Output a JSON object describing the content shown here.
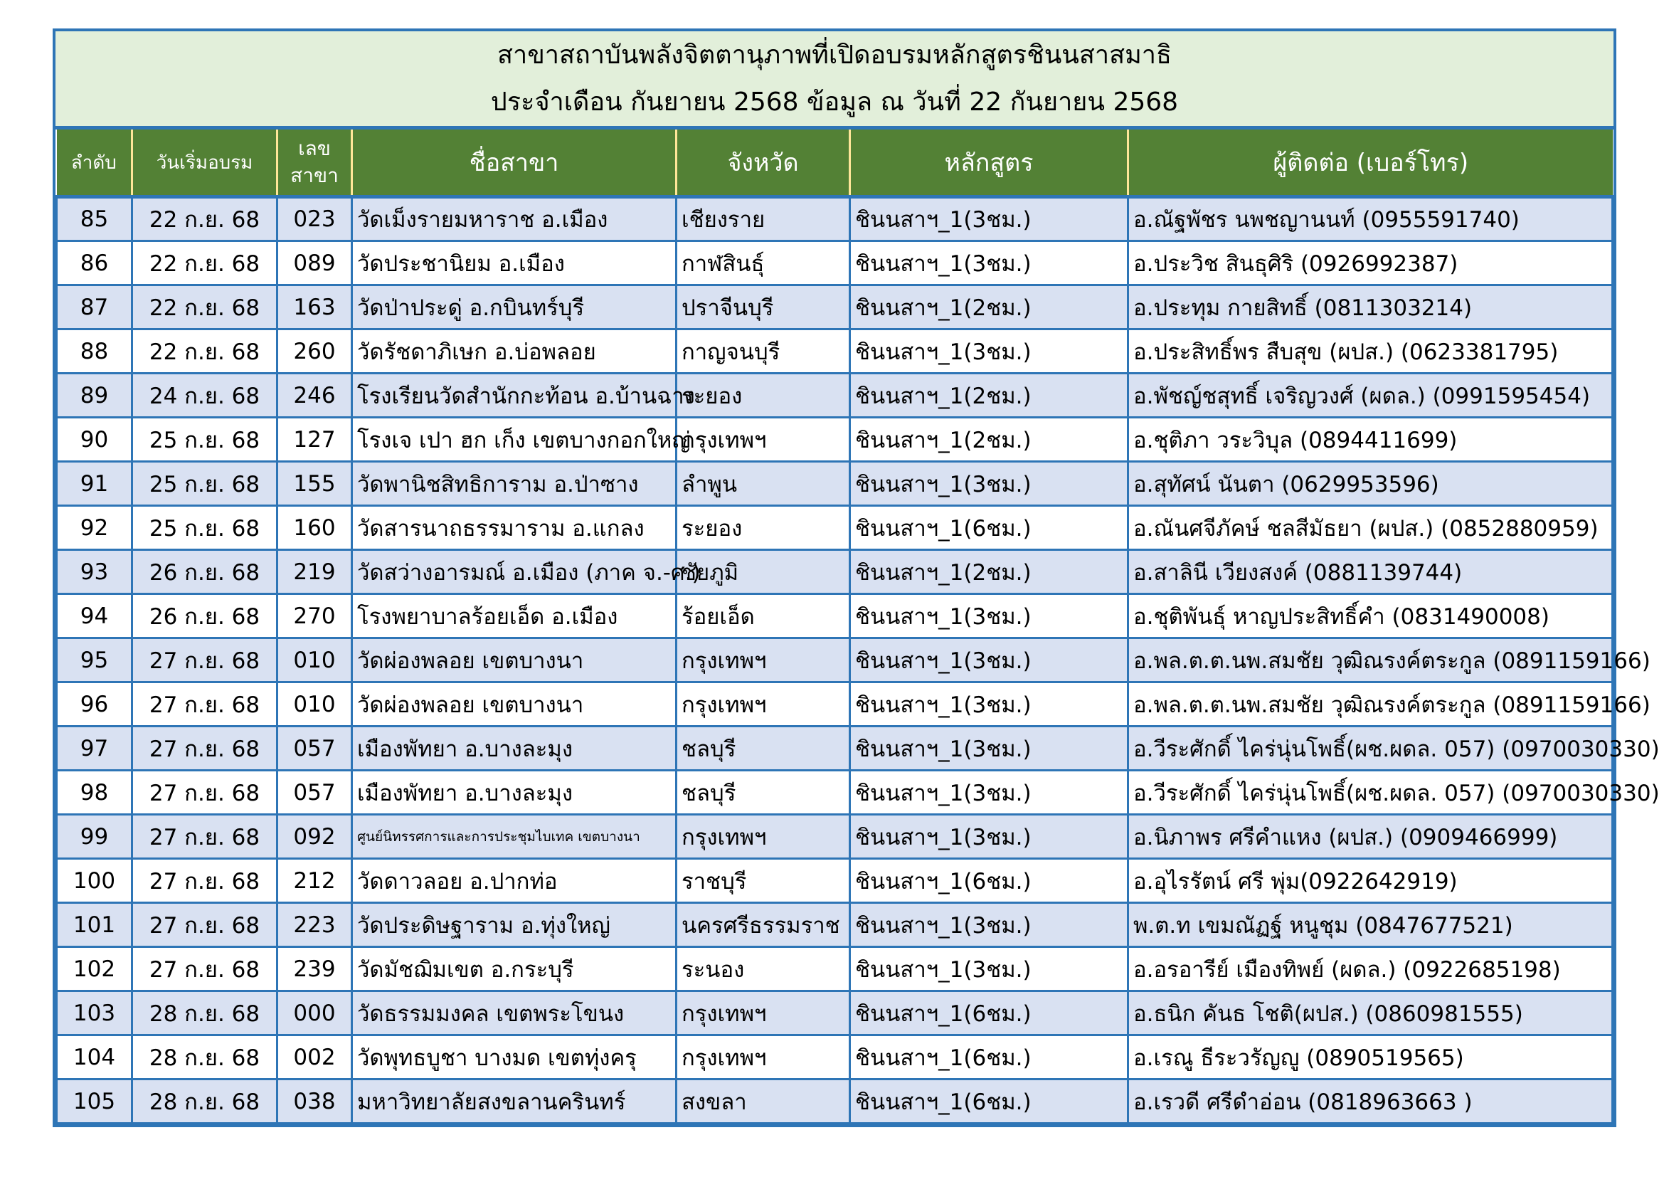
{
  "title": {
    "line1": "สาขาสถาบันพลังจิตตานุภาพที่เปิดอบรมหลักสูตรชินนสาสมาธิ",
    "line2": "ประจำเดือน กันยายน 2568 ข้อมูล ณ วันที่ 22 กันยายน 2568"
  },
  "columns": [
    "ลำดับ",
    "วันเริ่มอบรม",
    "เลข สาขา",
    "ชื่อสาขา",
    "จังหวัด",
    "หลักสูตร",
    "ผู้ติดต่อ (เบอร์โทร)"
  ],
  "colors": {
    "title_bg": "#E2EFDA",
    "header_bg": "#538135",
    "border": "#2E75B6",
    "row_alt": "#D9E1F2",
    "header_divider": "#FFE699"
  },
  "rows": [
    [
      "85",
      "22 ก.ย. 68",
      "023",
      "วัดเม็งรายมหาราช อ.เมือง",
      "เชียงราย",
      "ชินนสาฯ_1(3ชม.)",
      "อ.ณัฐพัชร  นพชญานนท์ (0955591740)"
    ],
    [
      "86",
      "22 ก.ย. 68",
      "089",
      "วัดประชานิยม อ.เมือง",
      "กาฬสินธุ์",
      "ชินนสาฯ_1(3ชม.)",
      "อ.ประวิช  สินธุศิริ (0926992387)"
    ],
    [
      "87",
      "22 ก.ย. 68",
      "163",
      "วัดป่าประดู่ อ.กบินทร์บุรี",
      "ปราจีนบุรี",
      "ชินนสาฯ_1(2ชม.)",
      "อ.ประทุม กายสิทธิ์ (0811303214)"
    ],
    [
      "88",
      "22 ก.ย. 68",
      "260",
      "วัดรัชดาภิเษก อ.บ่อพลอย",
      "กาญจนบุรี",
      "ชินนสาฯ_1(3ชม.)",
      "อ.ประสิทธิ์พร สืบสุข (ผปส.) (0623381795)"
    ],
    [
      "89",
      "24 ก.ย. 68",
      "246",
      "โรงเรียนวัดสำนักกะท้อน อ.บ้านฉาง",
      "ระยอง",
      "ชินนสาฯ_1(2ชม.)",
      "อ.พัชญ์ชสุทธิ์ เจริญวงศ์ (ผดล.) (0991595454)"
    ],
    [
      "90",
      "25 ก.ย. 68",
      "127",
      "โรงเจ เปา ฮก เก็ง เขตบางกอกใหญ่",
      "กรุงเทพฯ",
      "ชินนสาฯ_1(2ชม.)",
      "อ.ชุติภา วระวิบุล (0894411699)"
    ],
    [
      "91",
      "25 ก.ย. 68",
      "155",
      "วัดพานิชสิทธิการาม อ.ป่าซาง",
      "ลำพูน",
      "ชินนสาฯ_1(3ชม.)",
      "อ.สุทัศน์  นันตา (0629953596)"
    ],
    [
      "92",
      "25 ก.ย. 68",
      "160",
      "วัดสารนาถธรรมาราม อ.แกลง",
      "ระยอง",
      "ชินนสาฯ_1(6ชม.)",
      "อ.ณันศจีภัคษ์ ชลสีมัธยา (ผปส.) (0852880959)"
    ],
    [
      "93",
      "26 ก.ย. 68",
      "219",
      "วัดสว่างอารมณ์ อ.เมือง (ภาค จ.-ศ.)",
      "ชัยภูมิ",
      "ชินนสาฯ_1(2ชม.)",
      "อ.สาลินี เวียงสงค์ (0881139744)"
    ],
    [
      "94",
      "26 ก.ย. 68",
      "270",
      "โรงพยาบาลร้อยเอ็ด อ.เมือง",
      "ร้อยเอ็ด",
      "ชินนสาฯ_1(3ชม.)",
      "อ.ชุติพันธุ์  หาญประสิทธิ์คำ (0831490008)"
    ],
    [
      "95",
      "27 ก.ย. 68",
      "010",
      "วัดผ่องพลอย เขตบางนา",
      "กรุงเทพฯ",
      "ชินนสาฯ_1(3ชม.)",
      "อ.พล.ต.ต.นพ.สมชัย วุฒิณรงค์ตระกูล (0891159166)"
    ],
    [
      "96",
      "27 ก.ย. 68",
      "010",
      "วัดผ่องพลอย เขตบางนา",
      "กรุงเทพฯ",
      "ชินนสาฯ_1(3ชม.)",
      "อ.พล.ต.ต.นพ.สมชัย วุฒิณรงค์ตระกูล (0891159166)"
    ],
    [
      "97",
      "27 ก.ย. 68",
      "057",
      "เมืองพัทยา อ.บางละมุง",
      "ชลบุรี",
      "ชินนสาฯ_1(3ชม.)",
      "อ.วีระศักดิ์ ไคร่นุ่นโพธิ์(ผช.ผดล. 057) (0970030330)"
    ],
    [
      "98",
      "27 ก.ย. 68",
      "057",
      "เมืองพัทยา อ.บางละมุง",
      "ชลบุรี",
      "ชินนสาฯ_1(3ชม.)",
      "อ.วีระศักดิ์ ไคร่นุ่นโพธิ์(ผช.ผดล. 057) (0970030330)"
    ],
    [
      "99",
      "27 ก.ย. 68",
      "092",
      "ศูนย์นิทรรศการและการประชุมไบเทค เขตบางนา",
      "กรุงเทพฯ",
      "ชินนสาฯ_1(3ชม.)",
      "อ.นิภาพร ศรีคำแหง (ผปส.) (0909466999)"
    ],
    [
      "100",
      "27 ก.ย. 68",
      "212",
      "วัดดาวลอย อ.ปากท่อ",
      "ราชบุรี",
      "ชินนสาฯ_1(6ชม.)",
      "อ.อุไรรัตน์  ศรี พุ่ม(0922642919)"
    ],
    [
      "101",
      "27 ก.ย. 68",
      "223",
      "วัดประดิษฐาราม อ.ทุ่งใหญ่",
      "นครศรีธรรมราช",
      "ชินนสาฯ_1(3ชม.)",
      "พ.ต.ท เขมณัฏฐ์ หนูชุม (0847677521)"
    ],
    [
      "102",
      "27 ก.ย. 68",
      "239",
      "วัดมัชฌิมเขต อ.กระบุรี",
      "ระนอง",
      "ชินนสาฯ_1(3ชม.)",
      "อ.อรอารีย์ เมืองทิพย์ (ผดล.) (0922685198)"
    ],
    [
      "103",
      "28 ก.ย. 68",
      "000",
      "วัดธรรมมงคล เขตพระโขนง",
      "กรุงเทพฯ",
      "ชินนสาฯ_1(6ชม.)",
      "อ.ธนิก  คันธ โชติ(ผปส.) (0860981555)"
    ],
    [
      "104",
      "28 ก.ย. 68",
      "002",
      "วัดพุทธบูชา บางมด เขตทุ่งครุ",
      "กรุงเทพฯ",
      "ชินนสาฯ_1(6ชม.)",
      "อ.เรณู ธีระวรัญญู (0890519565)"
    ],
    [
      "105",
      "28 ก.ย. 68",
      "038",
      "มหาวิทยาลัยสงขลานครินทร์",
      "สงขลา",
      "ชินนสาฯ_1(6ชม.)",
      "อ.เรวดี ศรีดำอ่อน  (0818963663 )"
    ]
  ]
}
